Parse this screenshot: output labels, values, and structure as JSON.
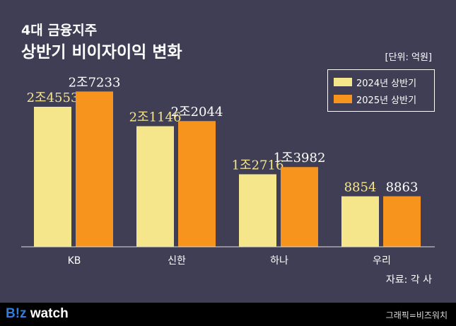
{
  "chart_data": {
    "type": "bar",
    "title": "4대 금융지주",
    "subtitle": "상반기 비이자이익 변화",
    "unit": "[단위: 억원]",
    "categories": [
      "KB",
      "신한",
      "하나",
      "우리"
    ],
    "series": [
      {
        "name": "2024년 상반기",
        "color": "#f5e68c",
        "values": [
          24553,
          21146,
          12716,
          8854
        ],
        "labels": [
          "2조4553",
          "2조1146",
          "1조2716",
          "8854"
        ]
      },
      {
        "name": "2025년 상반기",
        "color": "#f7941d",
        "values": [
          27233,
          22044,
          13982,
          8863
        ],
        "labels": [
          "2조7233",
          "2조2044",
          "1조3982",
          "8863"
        ]
      }
    ],
    "ylim": [
      0,
      30000
    ],
    "legend": "top-right"
  },
  "source": "자료: 각 사",
  "footer": {
    "logo_a": "B!z",
    "logo_b": " watch",
    "credit": "그래픽=비즈워치"
  }
}
